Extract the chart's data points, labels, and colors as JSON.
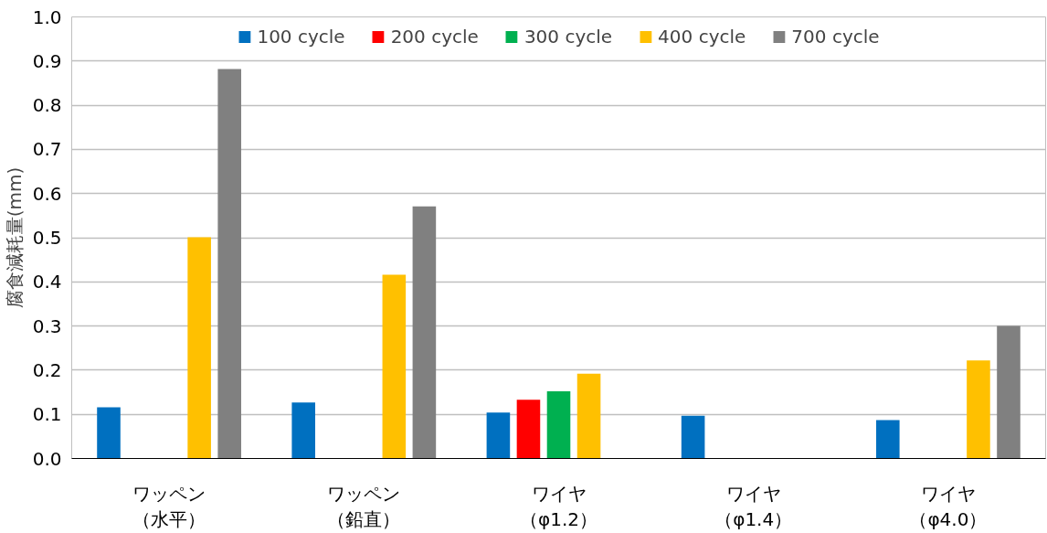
{
  "chart_data": {
    "type": "bar",
    "ylabel": "腐食減耗量(mm)",
    "categories": [
      "ワッペン（水平）",
      "ワッペン（鉛直）",
      "ワイヤ（φ1.2）",
      "ワイヤ（φ1.4）",
      "ワイヤ（φ4.0）"
    ],
    "series": [
      {
        "name": "100 cycle",
        "color": "#0070c0",
        "values": [
          0.116,
          0.127,
          0.104,
          0.097,
          0.087
        ]
      },
      {
        "name": "200 cycle",
        "color": "#ff0000",
        "values": [
          null,
          null,
          0.133,
          null,
          null
        ]
      },
      {
        "name": "300 cycle",
        "color": "#00b050",
        "values": [
          null,
          null,
          0.152,
          null,
          null
        ]
      },
      {
        "name": "400 cycle",
        "color": "#ffc000",
        "values": [
          0.501,
          0.416,
          0.192,
          null,
          0.222
        ]
      },
      {
        "name": "700 cycle",
        "color": "#808080",
        "values": [
          0.882,
          0.571,
          null,
          null,
          0.3
        ]
      }
    ],
    "ylim": [
      0,
      1.0
    ],
    "yticks": [
      {
        "value": 0,
        "label": "0.0"
      },
      {
        "value": 0.1,
        "label": "0.1"
      },
      {
        "value": 0.2,
        "label": "0.2"
      },
      {
        "value": 0.3,
        "label": "0.3"
      },
      {
        "value": 0.4,
        "label": "0.4"
      },
      {
        "value": 0.5,
        "label": "0.5"
      },
      {
        "value": 0.6,
        "label": "0.6"
      },
      {
        "value": 0.7,
        "label": "0.7"
      },
      {
        "value": 0.8,
        "label": "0.8"
      },
      {
        "value": 0.9,
        "label": "0.9"
      },
      {
        "value": 1.0,
        "label": "1.0"
      }
    ],
    "grid": "y",
    "legend": "top"
  }
}
